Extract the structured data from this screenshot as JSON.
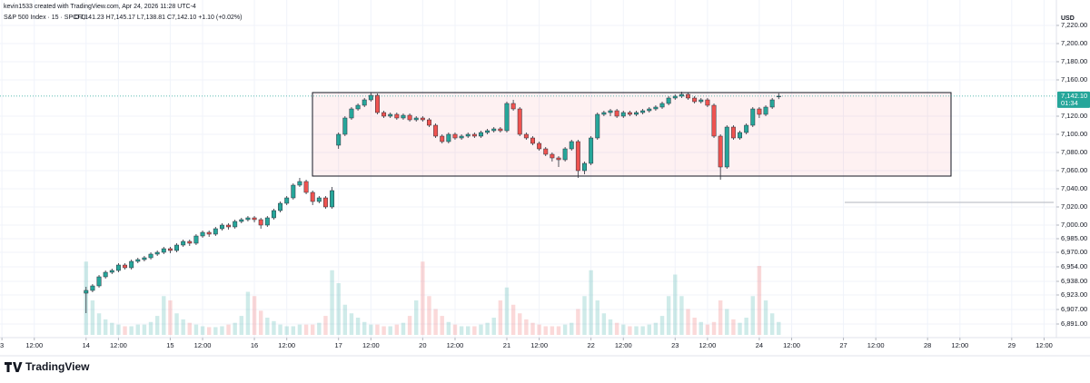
{
  "header": {
    "credit": "kevin1533 created with TradingView.com, Apr 24, 2026 11:28 UTC-4",
    "symbol": "S&P 500 Index · 15 · SPCFD",
    "ohlc_text": "O7,141.23 H7,145.17 L7,138.81 C7,142.10 +1.10 (+0.02%)",
    "currency": "USD"
  },
  "footer": {
    "brand": "TradingView"
  },
  "chart_data": {
    "type": "candlestick",
    "up_color": "#26a69a",
    "down_color": "#ef5350",
    "grid": true,
    "ylim": [
      6876,
      7248
    ],
    "yticks": [
      {
        "value": 7220,
        "label": "7,220.00"
      },
      {
        "value": 7200,
        "label": "7,200.00"
      },
      {
        "value": 7180,
        "label": "7,180.00"
      },
      {
        "value": 7160,
        "label": "7,160.00"
      },
      {
        "value": 7120,
        "label": "7,120.00"
      },
      {
        "value": 7100,
        "label": "7,100.00"
      },
      {
        "value": 7080,
        "label": "7,080.00"
      },
      {
        "value": 7060,
        "label": "7,060.00"
      },
      {
        "value": 7040,
        "label": "7,040.00"
      },
      {
        "value": 7020,
        "label": "7,020.00"
      },
      {
        "value": 7000,
        "label": "7,000.00"
      },
      {
        "value": 6985,
        "label": "6,985.00"
      },
      {
        "value": 6970,
        "label": "6,970.00"
      },
      {
        "value": 6954,
        "label": "6,954.00"
      },
      {
        "value": 6938,
        "label": "6,938.00"
      },
      {
        "value": 6923,
        "label": "6,923.00"
      },
      {
        "value": 6907,
        "label": "6,907.00"
      },
      {
        "value": 6891,
        "label": "6,891.00"
      }
    ],
    "xlim": [
      -13.3,
      149.9
    ],
    "xticks": [
      {
        "value": -13,
        "label": "3"
      },
      {
        "value": -8,
        "label": "12:00"
      },
      {
        "value": 0,
        "label": "14"
      },
      {
        "value": 5,
        "label": "12:00"
      },
      {
        "value": 13,
        "label": "15"
      },
      {
        "value": 18,
        "label": "12:00"
      },
      {
        "value": 26,
        "label": "16"
      },
      {
        "value": 31,
        "label": "12:00"
      },
      {
        "value": 39,
        "label": "17"
      },
      {
        "value": 44,
        "label": "12:00"
      },
      {
        "value": 52,
        "label": "20"
      },
      {
        "value": 57,
        "label": "12:00"
      },
      {
        "value": 65,
        "label": "21"
      },
      {
        "value": 70,
        "label": "12:00"
      },
      {
        "value": 78,
        "label": "22"
      },
      {
        "value": 83,
        "label": "12:00"
      },
      {
        "value": 91,
        "label": "23"
      },
      {
        "value": 96,
        "label": "12:00"
      },
      {
        "value": 104,
        "label": "24"
      },
      {
        "value": 109,
        "label": "12:00"
      },
      {
        "value": 117,
        "label": "27"
      },
      {
        "value": 122,
        "label": "12:00"
      },
      {
        "value": 130,
        "label": "28"
      },
      {
        "value": 135,
        "label": "12:00"
      },
      {
        "value": 143,
        "label": "29"
      },
      {
        "value": 148,
        "label": "12:00"
      }
    ],
    "last_price": {
      "value": 7142.1,
      "label": "7,142.10"
    },
    "countdown": "01:34",
    "ohlc": [
      [
        6925,
        6932,
        6903,
        6928
      ],
      [
        6928,
        6935,
        6926,
        6933
      ],
      [
        6933,
        6945,
        6931,
        6943
      ],
      [
        6943,
        6950,
        6941,
        6948
      ],
      [
        6948,
        6952,
        6946,
        6950
      ],
      [
        6950,
        6958,
        6948,
        6956
      ],
      [
        6956,
        6958,
        6951,
        6953
      ],
      [
        6953,
        6962,
        6951,
        6960
      ],
      [
        6960,
        6964,
        6958,
        6962
      ],
      [
        6962,
        6966,
        6960,
        6964
      ],
      [
        6964,
        6970,
        6962,
        6968
      ],
      [
        6968,
        6972,
        6966,
        6970
      ],
      [
        6970,
        6976,
        6968,
        6974
      ],
      [
        6974,
        6976,
        6969,
        6972
      ],
      [
        6972,
        6980,
        6970,
        6978
      ],
      [
        6978,
        6984,
        6976,
        6982
      ],
      [
        6982,
        6984,
        6977,
        6980
      ],
      [
        6980,
        6990,
        6978,
        6988
      ],
      [
        6988,
        6994,
        6986,
        6992
      ],
      [
        6992,
        6994,
        6987,
        6990
      ],
      [
        6990,
        6998,
        6988,
        6996
      ],
      [
        6996,
        7002,
        6994,
        7000
      ],
      [
        7000,
        7002,
        6995,
        6998
      ],
      [
        6998,
        7006,
        6996,
        7004
      ],
      [
        7004,
        7008,
        7002,
        7006
      ],
      [
        7006,
        7010,
        7004,
        7008
      ],
      [
        7008,
        7010,
        7003,
        7006
      ],
      [
        7006,
        7008,
        6996,
        7000
      ],
      [
        7000,
        7010,
        6998,
        7008
      ],
      [
        7008,
        7018,
        7006,
        7016
      ],
      [
        7016,
        7026,
        7014,
        7024
      ],
      [
        7024,
        7032,
        7022,
        7030
      ],
      [
        7030,
        7046,
        7028,
        7044
      ],
      [
        7044,
        7052,
        7042,
        7048
      ],
      [
        7048,
        7050,
        7034,
        7036
      ],
      [
        7036,
        7038,
        7022,
        7026
      ],
      [
        7026,
        7032,
        7024,
        7030
      ],
      [
        7030,
        7032,
        7018,
        7020
      ],
      [
        7020,
        7042,
        7018,
        7038
      ],
      [
        7088,
        7102,
        7084,
        7100
      ],
      [
        7100,
        7120,
        7098,
        7118
      ],
      [
        7118,
        7130,
        7116,
        7128
      ],
      [
        7128,
        7134,
        7126,
        7132
      ],
      [
        7132,
        7140,
        7130,
        7138
      ],
      [
        7138,
        7146,
        7136,
        7143
      ],
      [
        7143,
        7145,
        7122,
        7124
      ],
      [
        7124,
        7126,
        7118,
        7120
      ],
      [
        7120,
        7124,
        7118,
        7122
      ],
      [
        7122,
        7124,
        7116,
        7118
      ],
      [
        7118,
        7123,
        7116,
        7121
      ],
      [
        7121,
        7123,
        7114,
        7116
      ],
      [
        7116,
        7120,
        7114,
        7118
      ],
      [
        7118,
        7120,
        7114,
        7116
      ],
      [
        7116,
        7118,
        7108,
        7110
      ],
      [
        7110,
        7112,
        7096,
        7098
      ],
      [
        7098,
        7100,
        7090,
        7092
      ],
      [
        7092,
        7102,
        7090,
        7100
      ],
      [
        7100,
        7102,
        7094,
        7096
      ],
      [
        7096,
        7100,
        7094,
        7098
      ],
      [
        7098,
        7102,
        7096,
        7100
      ],
      [
        7100,
        7102,
        7096,
        7098
      ],
      [
        7098,
        7104,
        7096,
        7102
      ],
      [
        7102,
        7106,
        7100,
        7104
      ],
      [
        7104,
        7108,
        7102,
        7106
      ],
      [
        7106,
        7108,
        7102,
        7104
      ],
      [
        7104,
        7136,
        7102,
        7134
      ],
      [
        7134,
        7138,
        7126,
        7128
      ],
      [
        7128,
        7130,
        7098,
        7100
      ],
      [
        7100,
        7102,
        7094,
        7096
      ],
      [
        7096,
        7098,
        7088,
        7090
      ],
      [
        7090,
        7092,
        7082,
        7084
      ],
      [
        7084,
        7086,
        7076,
        7078
      ],
      [
        7078,
        7080,
        7070,
        7074
      ],
      [
        7074,
        7076,
        7064,
        7072
      ],
      [
        7072,
        7086,
        7070,
        7084
      ],
      [
        7084,
        7094,
        7082,
        7092
      ],
      [
        7092,
        7094,
        7052,
        7060
      ],
      [
        7060,
        7070,
        7056,
        7068
      ],
      [
        7068,
        7098,
        7066,
        7096
      ],
      [
        7096,
        7124,
        7094,
        7122
      ],
      [
        7122,
        7126,
        7120,
        7124
      ],
      [
        7124,
        7128,
        7120,
        7126
      ],
      [
        7126,
        7128,
        7118,
        7120
      ],
      [
        7120,
        7126,
        7118,
        7124
      ],
      [
        7124,
        7126,
        7120,
        7122
      ],
      [
        7122,
        7126,
        7120,
        7124
      ],
      [
        7124,
        7128,
        7122,
        7126
      ],
      [
        7126,
        7130,
        7124,
        7128
      ],
      [
        7128,
        7132,
        7126,
        7130
      ],
      [
        7130,
        7136,
        7128,
        7134
      ],
      [
        7134,
        7142,
        7132,
        7140
      ],
      [
        7140,
        7144,
        7138,
        7142
      ],
      [
        7142,
        7147,
        7140,
        7144
      ],
      [
        7144,
        7146,
        7138,
        7140
      ],
      [
        7140,
        7142,
        7134,
        7136
      ],
      [
        7136,
        7140,
        7134,
        7138
      ],
      [
        7138,
        7140,
        7130,
        7132
      ],
      [
        7132,
        7134,
        7096,
        7098
      ],
      [
        7098,
        7100,
        7050,
        7064
      ],
      [
        7064,
        7110,
        7062,
        7108
      ],
      [
        7108,
        7110,
        7094,
        7096
      ],
      [
        7096,
        7104,
        7094,
        7102
      ],
      [
        7102,
        7112,
        7100,
        7110
      ],
      [
        7110,
        7130,
        7108,
        7128
      ],
      [
        7128,
        7130,
        7118,
        7122
      ],
      [
        7122,
        7132,
        7120,
        7130
      ],
      [
        7130,
        7140,
        7128,
        7138
      ],
      [
        7141.23,
        7145.17,
        7138.81,
        7142.1
      ]
    ],
    "volume": [
      85,
      40,
      25,
      18,
      14,
      12,
      10,
      10,
      12,
      12,
      15,
      22,
      45,
      40,
      25,
      18,
      14,
      12,
      10,
      9,
      9,
      10,
      12,
      14,
      22,
      50,
      45,
      28,
      20,
      16,
      12,
      10,
      10,
      12,
      12,
      12,
      14,
      22,
      75,
      60,
      35,
      25,
      20,
      15,
      12,
      12,
      10,
      10,
      12,
      14,
      22,
      40,
      85,
      45,
      30,
      22,
      15,
      12,
      10,
      10,
      10,
      12,
      14,
      20,
      40,
      55,
      35,
      25,
      18,
      14,
      12,
      10,
      10,
      10,
      12,
      14,
      30,
      45,
      75,
      40,
      25,
      18,
      14,
      12,
      10,
      10,
      10,
      12,
      14,
      22,
      45,
      70,
      45,
      30,
      20,
      15,
      12,
      15,
      40,
      30,
      18,
      14,
      20,
      45,
      80,
      40,
      25,
      15
    ]
  }
}
